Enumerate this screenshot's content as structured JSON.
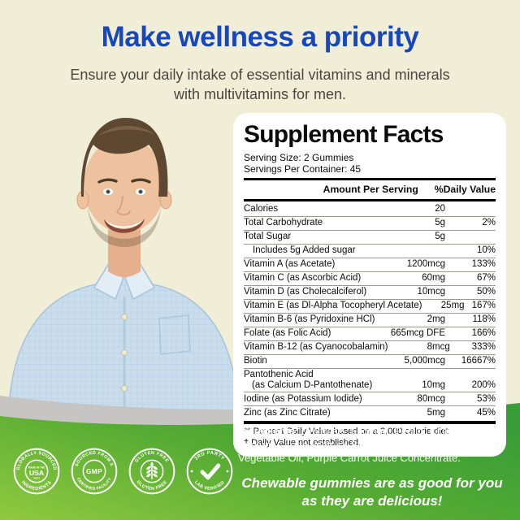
{
  "page": {
    "headline": "Make wellness a priority",
    "subtitle_line1": "Ensure your daily intake of essential vitamins and minerals",
    "subtitle_line2": "with multivitamins for men."
  },
  "panel": {
    "title": "Supplement Facts",
    "serving_size": "Serving Size: 2 Gummies",
    "servings_per_container": "Servings Per Container: 45",
    "col_amount": "Amount Per Serving",
    "col_dv": "%Daily Value",
    "rows": [
      {
        "name": "Calories",
        "amount": "20",
        "dv": ""
      },
      {
        "name": "Total Carbohydrate",
        "amount": "5g",
        "dv": "2%"
      },
      {
        "name": "Total Sugar",
        "amount": "5g",
        "dv": ""
      },
      {
        "name": "Includes 5g Added sugar",
        "amount": "",
        "dv": "10%",
        "indent": true
      },
      {
        "name": "Vitamin A (as Acetate)",
        "amount": "1200mcg",
        "dv": "133%"
      },
      {
        "name": "Vitamin C (as Ascorbic Acid)",
        "amount": "60mg",
        "dv": "67%"
      },
      {
        "name": "Vitamin D (as Cholecalciferol)",
        "amount": "10mcg",
        "dv": "50%"
      },
      {
        "name": "Vitamin E (as Dl-Alpha Tocopheryl Acetate)",
        "amount": "25mg",
        "dv": "167%"
      },
      {
        "name": "Vitamin B-6 (as Pyridoxine HCl)",
        "amount": "2mg",
        "dv": "118%"
      },
      {
        "name": "Folate (as Folic Acid)",
        "amount": "665mcg DFE",
        "dv": "166%"
      },
      {
        "name": "Vitamin B-12 (as Cyanocobalamin)",
        "amount": "8mcg",
        "dv": "333%"
      },
      {
        "name": "Biotin",
        "amount": "5,000mcg",
        "dv": "16667%"
      },
      {
        "name": "Pantothenic Acid",
        "name2": "(as Calcium D-Pantothenate)",
        "amount": "10mg",
        "dv": "200%"
      },
      {
        "name": "Iodine (as Potassium Iodide)",
        "amount": "80mcg",
        "dv": "53%"
      },
      {
        "name": "Zinc (as Zinc Citrate)",
        "amount": "5mg",
        "dv": "45%"
      }
    ],
    "footnote1": "** Percent Daily Value based on a 2,000 calorie diet.",
    "footnote2": "† Daily Value not established."
  },
  "badges": [
    {
      "top": "GLOBALLY SOURCED",
      "bottom": "INGREDIENTS",
      "center_line1": "MADE IN THE",
      "center_line2": "USA",
      "center_line3": "WITH"
    },
    {
      "top": "SOURCED FROM A",
      "bottom": "CERTIFIED FACILITY",
      "center_line2": "GMP"
    },
    {
      "top": "GLUTEN FREE",
      "bottom": "GLUTEN FREE",
      "icon": "wheat-icon"
    },
    {
      "top": "3RD PARTY",
      "bottom": "LAB VERIFIED",
      "icon": "checkmark-icon"
    }
  ],
  "footer": {
    "ingredients_label": "Ingredients:",
    "ingredients_text": " Dextrose, Sucrose, Pectin, Citric Acid, Sodium Citrate, Natural Strawberry and Cherry Flavors, Vegetable Oil, Purple Carrot Juice Concentrate.",
    "tagline_line1": "Chewable gummies are as good for you",
    "tagline_line2": "as they are delicious!"
  },
  "colors": {
    "background_cream": "#F1EED7",
    "headline_blue": "#1747BD",
    "subtitle_gray": "#48463F",
    "green_light": "#90C93F",
    "green_dark": "#389D37",
    "gray_band": "#C7C5C3",
    "panel_white": "#FFFFFF"
  }
}
